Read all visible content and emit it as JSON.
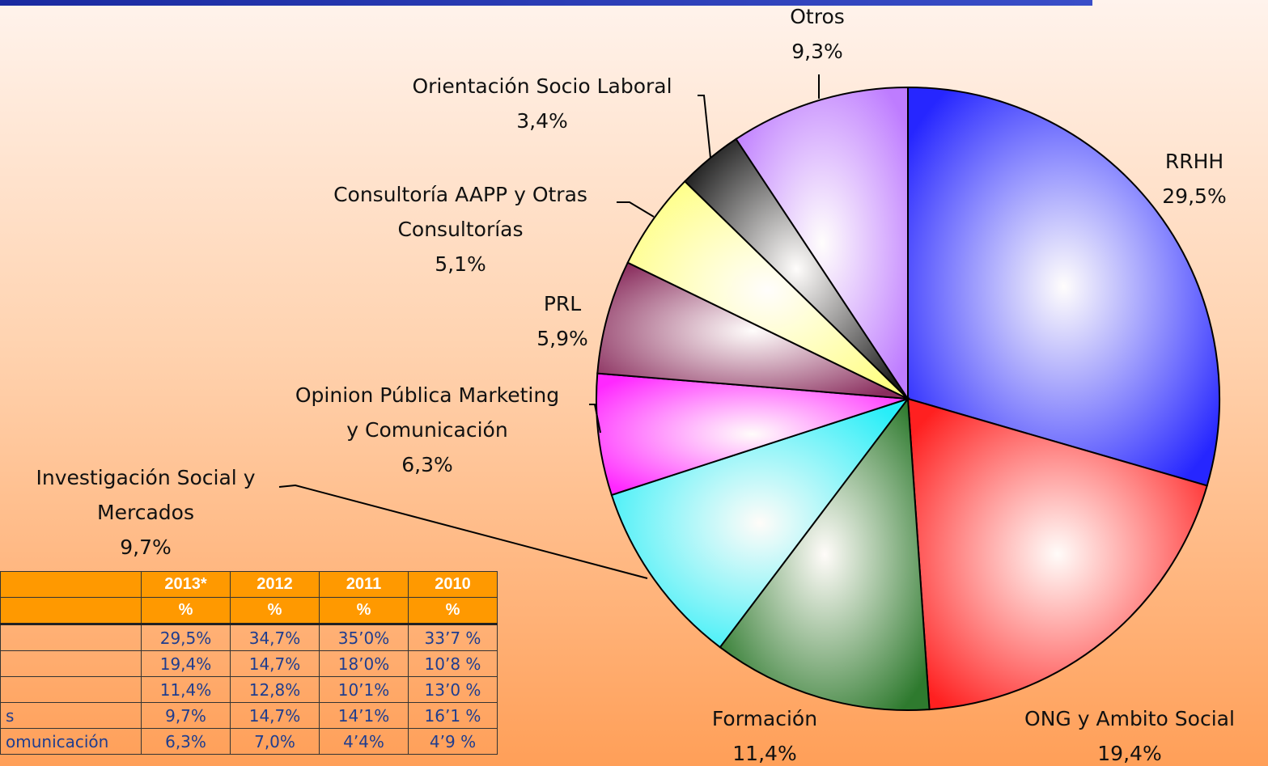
{
  "chart_data": {
    "type": "pie",
    "categories": [
      "RRHH",
      "ONG y Ambito Social",
      "Formación",
      "Investigación Social y Mercados",
      "Opinion Pública Marketing y Comunicación",
      "PRL",
      "Consultoría AAPP y Otras Consultorías",
      "Orientación Socio Laboral",
      "Otros"
    ],
    "values": [
      29.5,
      19.4,
      11.4,
      9.7,
      6.3,
      5.9,
      5.1,
      3.4,
      9.3
    ],
    "value_labels": [
      "29,5%",
      "19,4%",
      "11,4%",
      "9,7%",
      "6,3%",
      "5,9%",
      "5,1%",
      "3,4%",
      "9,3%"
    ],
    "colors": [
      "#2626ff",
      "#ff2020",
      "#2e7a2e",
      "#28eef8",
      "#ff28ff",
      "#8a2e5e",
      "#ffff80",
      "#1a1a1a",
      "#be7cff"
    ]
  },
  "table": {
    "columns": [
      "2013*",
      "2012",
      "2011",
      "2010"
    ],
    "units": [
      "%",
      "%",
      "%",
      "%"
    ],
    "rows": [
      {
        "values": [
          "29,5%",
          "34,7%",
          "35’0%",
          "33’7 %"
        ]
      },
      {
        "values": [
          "19,4%",
          "14,7%",
          "18’0%",
          "10’8 %"
        ]
      },
      {
        "values": [
          "11,4%",
          "12,8%",
          "10’1%",
          "13’0 %"
        ]
      },
      {
        "label": "s",
        "values": [
          "9,7%",
          "14,7%",
          "14’1%",
          "16’1 %"
        ]
      },
      {
        "label": "omunicación",
        "values": [
          "6,3%",
          "7,0%",
          "4’4%",
          "4’9 %"
        ]
      }
    ]
  }
}
